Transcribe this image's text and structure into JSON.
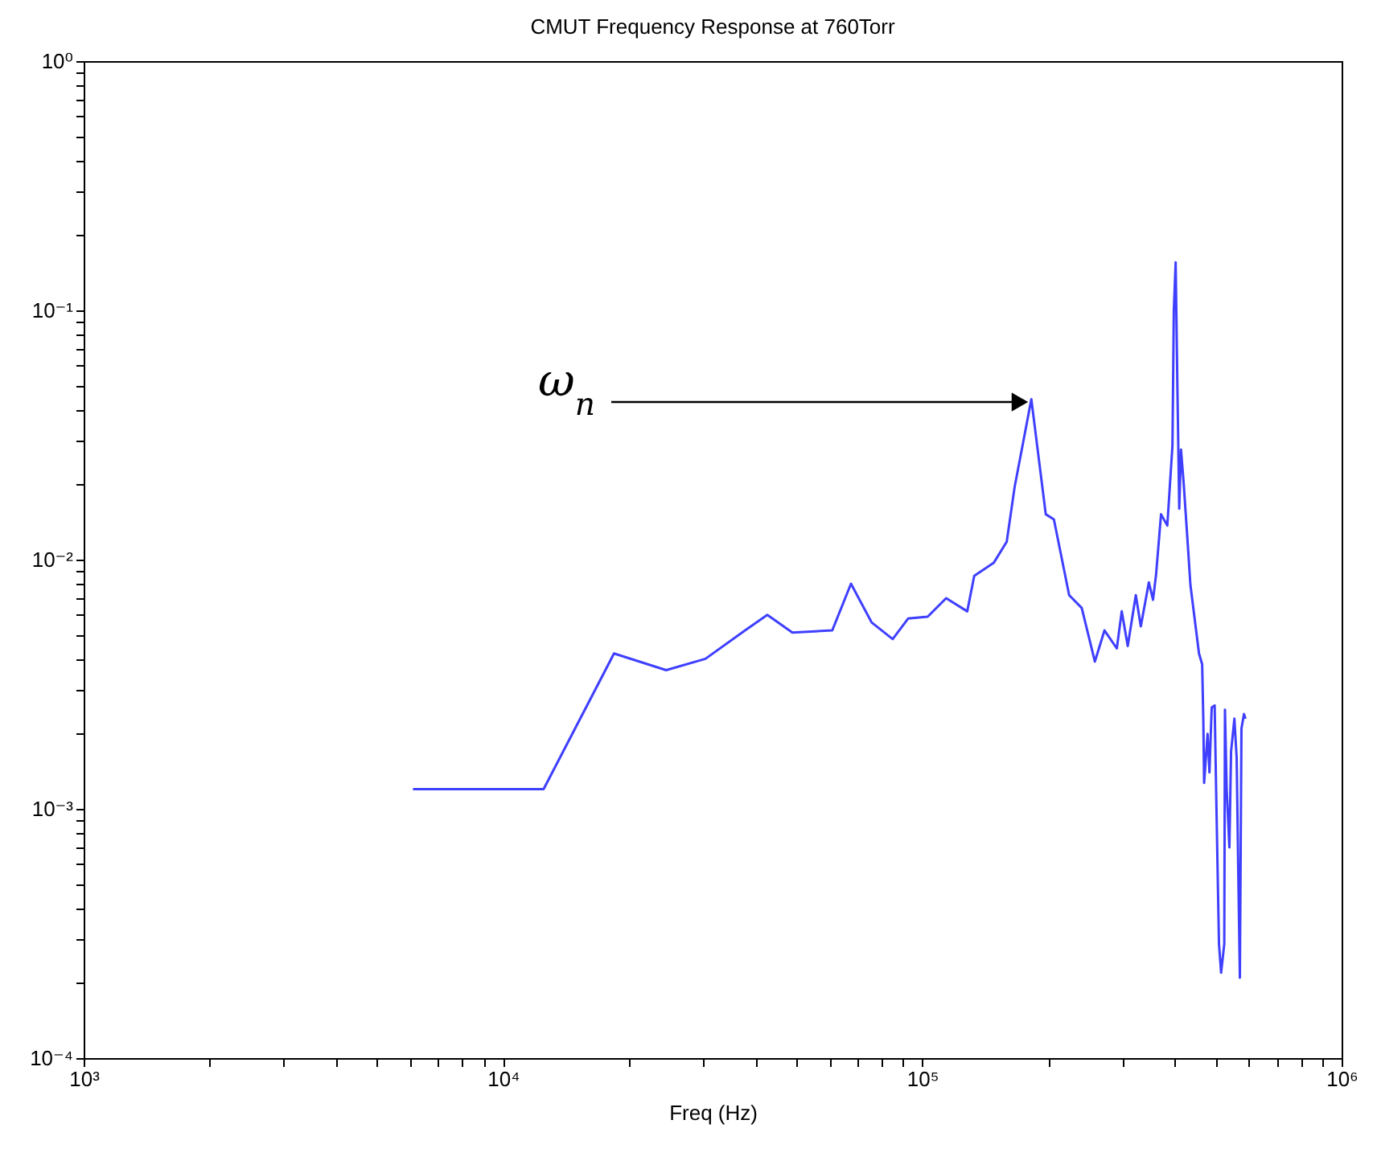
{
  "chart_data": {
    "type": "line",
    "title": "CMUT Frequency Response at 760Torr",
    "xlabel": "Freq (Hz)",
    "log": "xy",
    "grid": false,
    "legend": false,
    "marker": "none",
    "line_style": "solid",
    "xlim": [
      1000,
      1000000
    ],
    "ylim": [
      0.0001,
      1
    ],
    "xticks": [
      {
        "value": 1000,
        "label": "10³"
      },
      {
        "value": 2000,
        "label": null
      },
      {
        "value": 3000,
        "label": null
      },
      {
        "value": 4000,
        "label": null
      },
      {
        "value": 5000,
        "label": null
      },
      {
        "value": 6000,
        "label": null
      },
      {
        "value": 7000,
        "label": null
      },
      {
        "value": 8000,
        "label": null
      },
      {
        "value": 9000,
        "label": null
      },
      {
        "value": 10000,
        "label": "10⁴"
      },
      {
        "value": 20000,
        "label": null
      },
      {
        "value": 30000,
        "label": null
      },
      {
        "value": 40000,
        "label": null
      },
      {
        "value": 50000,
        "label": null
      },
      {
        "value": 60000,
        "label": null
      },
      {
        "value": 70000,
        "label": null
      },
      {
        "value": 80000,
        "label": null
      },
      {
        "value": 90000,
        "label": null
      },
      {
        "value": 100000,
        "label": "10⁵"
      },
      {
        "value": 200000,
        "label": null
      },
      {
        "value": 300000,
        "label": null
      },
      {
        "value": 400000,
        "label": null
      },
      {
        "value": 500000,
        "label": null
      },
      {
        "value": 600000,
        "label": null
      },
      {
        "value": 700000,
        "label": null
      },
      {
        "value": 800000,
        "label": null
      },
      {
        "value": 900000,
        "label": null
      },
      {
        "value": 1000000,
        "label": "10⁶"
      }
    ],
    "yticks": [
      {
        "value": 0.0001,
        "label": "10⁻⁴"
      },
      {
        "value": 0.0002,
        "label": null
      },
      {
        "value": 0.0003,
        "label": null
      },
      {
        "value": 0.0004,
        "label": null
      },
      {
        "value": 0.0005,
        "label": null
      },
      {
        "value": 0.0006,
        "label": null
      },
      {
        "value": 0.0007,
        "label": null
      },
      {
        "value": 0.0008,
        "label": null
      },
      {
        "value": 0.0009,
        "label": null
      },
      {
        "value": 0.001,
        "label": "10⁻³"
      },
      {
        "value": 0.002,
        "label": null
      },
      {
        "value": 0.003,
        "label": null
      },
      {
        "value": 0.004,
        "label": null
      },
      {
        "value": 0.005,
        "label": null
      },
      {
        "value": 0.006,
        "label": null
      },
      {
        "value": 0.007,
        "label": null
      },
      {
        "value": 0.008,
        "label": null
      },
      {
        "value": 0.009,
        "label": null
      },
      {
        "value": 0.01,
        "label": "10⁻²"
      },
      {
        "value": 0.02,
        "label": null
      },
      {
        "value": 0.03,
        "label": null
      },
      {
        "value": 0.04,
        "label": null
      },
      {
        "value": 0.05,
        "label": null
      },
      {
        "value": 0.06,
        "label": null
      },
      {
        "value": 0.07,
        "label": null
      },
      {
        "value": 0.08,
        "label": null
      },
      {
        "value": 0.09,
        "label": null
      },
      {
        "value": 0.1,
        "label": "10⁻¹"
      },
      {
        "value": 0.2,
        "label": null
      },
      {
        "value": 0.3,
        "label": null
      },
      {
        "value": 0.4,
        "label": null
      },
      {
        "value": 0.5,
        "label": null
      },
      {
        "value": 0.6,
        "label": null
      },
      {
        "value": 0.7,
        "label": null
      },
      {
        "value": 0.8,
        "label": null
      },
      {
        "value": 0.9,
        "label": null
      },
      {
        "value": 1,
        "label": "10⁰"
      }
    ],
    "annotations": [
      "ω$_{n}$"
    ],
    "series": [
      {
        "color": "#3f3fff",
        "x": [
          6100,
          12500,
          18400,
          24500,
          30400,
          37800,
          42700,
          49000,
          61000,
          67600,
          75700,
          85000,
          92500,
          103000,
          114000,
          128000,
          133000,
          148000,
          159000,
          166000,
          182000,
          197000,
          206000,
          224000,
          240000,
          258000,
          272000,
          291000,
          299000,
          309000,
          323000,
          332000,
          347000,
          355000,
          361000,
          371000,
          384000,
          395000,
          398000,
          402000,
          406000,
          410000,
          414000,
          420000,
          430000,
          436000,
          457000,
          465000,
          468000,
          470000,
          479000,
          484000,
          490000,
          498000,
          503000,
          510000,
          516000,
          525000,
          527000,
          532000,
          540000,
          545000,
          555000,
          562000,
          567000,
          572000,
          577000,
          585000,
          590000
        ],
        "values": [
          0.0012,
          0.0012,
          0.0042,
          0.0036,
          0.004,
          0.0052,
          0.006,
          0.0051,
          0.0052,
          0.008,
          0.0056,
          0.0048,
          0.0058,
          0.0059,
          0.007,
          0.0062,
          0.0086,
          0.0097,
          0.0118,
          0.0195,
          0.044,
          0.0152,
          0.0145,
          0.0072,
          0.0064,
          0.0039,
          0.0052,
          0.0044,
          0.0062,
          0.0045,
          0.0072,
          0.0054,
          0.0081,
          0.0069,
          0.0087,
          0.0152,
          0.0137,
          0.0287,
          0.1,
          0.156,
          0.0475,
          0.016,
          0.0276,
          0.0204,
          0.0113,
          0.0079,
          0.0042,
          0.0038,
          0.00226,
          0.00127,
          0.002,
          0.0014,
          0.00255,
          0.0026,
          0.001,
          0.000287,
          0.00022,
          0.000287,
          0.0025,
          0.0012,
          0.0007,
          0.0017,
          0.0023,
          0.0016,
          0.00055,
          0.00021,
          0.0021,
          0.0024,
          0.0023
        ]
      }
    ]
  }
}
